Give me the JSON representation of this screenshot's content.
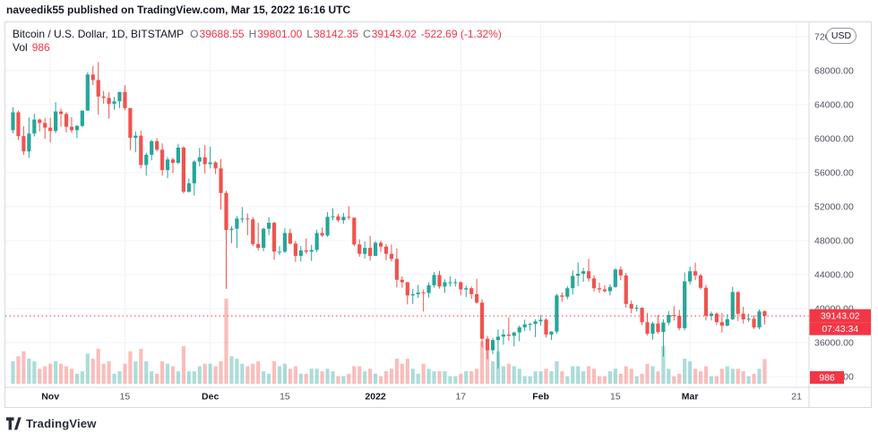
{
  "attribution": "naveedik55 published on TradingView.com, Mar 15, 2022 16:16 UTC",
  "header": {
    "symbol": "Bitcoin / U.S. Dollar, 1D, BITSTAMP",
    "ohlc": [
      {
        "label": "O",
        "value": "39688.55"
      },
      {
        "label": "H",
        "value": "39801.00"
      },
      {
        "label": "L",
        "value": "38142.35"
      },
      {
        "label": "C",
        "value": "39143.02"
      }
    ],
    "change": "-522.69 (-1.32%)",
    "vol_label": "Vol",
    "vol_value": "986"
  },
  "axis": {
    "currency_button": "USD",
    "price_ticks": [
      72000,
      68000,
      64000,
      60000,
      56000,
      52000,
      48000,
      44000,
      40000,
      36000,
      32000
    ],
    "time_ticks": [
      {
        "i": 7,
        "t": "Nov",
        "major": true
      },
      {
        "i": 21,
        "t": "15"
      },
      {
        "i": 37,
        "t": "Dec",
        "major": true
      },
      {
        "i": 51,
        "t": "15"
      },
      {
        "i": 68,
        "t": "2022",
        "major": true
      },
      {
        "i": 84,
        "t": "17"
      },
      {
        "i": 99,
        "t": "Feb",
        "major": true
      },
      {
        "i": 113,
        "t": "15"
      },
      {
        "i": 127,
        "t": "Mar",
        "major": true
      },
      {
        "i": 147,
        "t": "21"
      }
    ],
    "price_badge": "39143.02",
    "countdown_badge": "07:43:34",
    "volume_badge": "986"
  },
  "footer": {
    "logo_text": "TradingView"
  },
  "colors": {
    "up": "#26a69a",
    "down": "#ef5350",
    "accent_red": "#f23645",
    "grid": "#f0f3fa",
    "axis_text": "#50535e",
    "border": "#d7dade"
  },
  "chart_data": {
    "type": "candlestick+volume",
    "title": "Bitcoin / U.S. Dollar",
    "interval": "1D",
    "exchange": "BITSTAMP",
    "start_date": "2021-10-25",
    "end_date": "2022-03-15",
    "y_axis": {
      "min_label": 32000,
      "max_label": 72000,
      "step": 4000,
      "unit": "USD"
    },
    "last": {
      "open": 39688.55,
      "high": 39801.0,
      "low": 38142.35,
      "close": 39143.02,
      "change": -522.69,
      "change_pct": -1.32,
      "volume": 986
    },
    "candle_format": [
      "open",
      "high",
      "low",
      "close",
      "volume"
    ],
    "candles": [
      [
        61000,
        63700,
        60650,
        63100,
        900
      ],
      [
        63100,
        63300,
        59850,
        60300,
        1100
      ],
      [
        60300,
        61450,
        58100,
        58500,
        1300
      ],
      [
        58500,
        62500,
        57750,
        60600,
        1000
      ],
      [
        60600,
        62950,
        60250,
        62250,
        900
      ],
      [
        62250,
        62350,
        60850,
        61850,
        600
      ],
      [
        61850,
        62400,
        60000,
        61300,
        700
      ],
      [
        61300,
        62450,
        59550,
        60900,
        800
      ],
      [
        60900,
        64300,
        60650,
        63200,
        900
      ],
      [
        63200,
        63550,
        61400,
        62900,
        800
      ],
      [
        62900,
        63100,
        60750,
        61400,
        700
      ],
      [
        61400,
        62550,
        60700,
        61000,
        600
      ],
      [
        61000,
        61600,
        60050,
        61500,
        400
      ],
      [
        61500,
        63300,
        61350,
        63300,
        500
      ],
      [
        63300,
        67800,
        63300,
        67550,
        1200
      ],
      [
        67550,
        68550,
        66300,
        66900,
        1000
      ],
      [
        66900,
        69000,
        62850,
        64950,
        1400
      ],
      [
        64950,
        65600,
        64100,
        64800,
        800
      ],
      [
        64800,
        65450,
        62350,
        64100,
        900
      ],
      [
        64100,
        64900,
        63400,
        64400,
        400
      ],
      [
        64400,
        65500,
        63600,
        65500,
        500
      ],
      [
        65500,
        66300,
        63350,
        63600,
        800
      ],
      [
        63600,
        63600,
        58650,
        60100,
        1300
      ],
      [
        60100,
        60850,
        58400,
        60350,
        900
      ],
      [
        60350,
        60950,
        56500,
        56900,
        1400
      ],
      [
        56900,
        58350,
        55650,
        58100,
        900
      ],
      [
        58100,
        59850,
        57450,
        59700,
        500
      ],
      [
        59700,
        60050,
        58500,
        58700,
        400
      ],
      [
        58700,
        59450,
        55650,
        56300,
        900
      ],
      [
        56300,
        57850,
        55350,
        57550,
        800
      ],
      [
        57550,
        57750,
        55950,
        57150,
        700
      ],
      [
        57150,
        59400,
        57000,
        58950,
        500
      ],
      [
        58950,
        59100,
        53550,
        53750,
        1500
      ],
      [
        53750,
        55300,
        53650,
        54750,
        500
      ],
      [
        54750,
        57450,
        53300,
        57300,
        500
      ],
      [
        57300,
        58900,
        56750,
        57800,
        700
      ],
      [
        57800,
        59250,
        55900,
        57000,
        800
      ],
      [
        57000,
        59050,
        56500,
        57200,
        800
      ],
      [
        57200,
        57350,
        55850,
        56500,
        700
      ],
      [
        56500,
        57600,
        51650,
        53600,
        900
      ],
      [
        53600,
        53850,
        42330,
        49250,
        3400
      ],
      [
        49250,
        49700,
        47700,
        49400,
        1100
      ],
      [
        49400,
        50900,
        47150,
        50600,
        1000
      ],
      [
        50600,
        51950,
        50100,
        50600,
        800
      ],
      [
        50600,
        51200,
        48650,
        50500,
        700
      ],
      [
        50500,
        50800,
        47350,
        47600,
        800
      ],
      [
        47600,
        50100,
        46850,
        47150,
        900
      ],
      [
        47150,
        49500,
        46750,
        49400,
        500
      ],
      [
        49400,
        50750,
        48650,
        50100,
        400
      ],
      [
        50100,
        50200,
        45750,
        46700,
        900
      ],
      [
        46700,
        47350,
        46300,
        46700,
        700
      ],
      [
        46700,
        49450,
        46550,
        48900,
        800
      ],
      [
        48900,
        49400,
        47550,
        47650,
        600
      ],
      [
        47650,
        47950,
        45500,
        46200,
        700
      ],
      [
        46200,
        47350,
        45550,
        46850,
        400
      ],
      [
        46850,
        48250,
        46450,
        46700,
        400
      ],
      [
        46700,
        47500,
        45600,
        46900,
        600
      ],
      [
        46900,
        49300,
        46650,
        48900,
        600
      ],
      [
        48900,
        49550,
        48450,
        48600,
        500
      ],
      [
        48600,
        51350,
        48450,
        50800,
        600
      ],
      [
        50800,
        51800,
        50400,
        50850,
        500
      ],
      [
        50850,
        51150,
        50200,
        50400,
        300
      ],
      [
        50400,
        51250,
        50000,
        50800,
        300
      ],
      [
        50800,
        52050,
        50450,
        50700,
        400
      ],
      [
        50700,
        50700,
        47350,
        47550,
        700
      ],
      [
        47550,
        48150,
        46100,
        46450,
        700
      ],
      [
        46450,
        47900,
        45900,
        47150,
        500
      ],
      [
        47150,
        48550,
        45650,
        46200,
        600
      ],
      [
        46200,
        47950,
        46200,
        47750,
        400
      ],
      [
        47750,
        47990,
        46650,
        47300,
        300
      ],
      [
        47300,
        47600,
        45700,
        46450,
        500
      ],
      [
        46450,
        47550,
        45550,
        45850,
        600
      ],
      [
        45850,
        47100,
        42500,
        43400,
        1000
      ],
      [
        43400,
        43800,
        42450,
        43100,
        800
      ],
      [
        43100,
        43150,
        40500,
        41550,
        1000
      ],
      [
        41550,
        42300,
        40550,
        41700,
        600
      ],
      [
        41700,
        42800,
        41250,
        41900,
        400
      ],
      [
        41900,
        42250,
        39650,
        41840,
        800
      ],
      [
        41840,
        43100,
        41300,
        42750,
        600
      ],
      [
        42750,
        44300,
        42450,
        43950,
        500
      ],
      [
        43950,
        44450,
        42350,
        42600,
        500
      ],
      [
        42600,
        43450,
        41850,
        43100,
        500
      ],
      [
        43100,
        43800,
        42600,
        43100,
        300
      ],
      [
        43100,
        43500,
        42600,
        43100,
        300
      ],
      [
        43100,
        43200,
        41550,
        42250,
        400
      ],
      [
        42250,
        42700,
        41350,
        42400,
        500
      ],
      [
        42400,
        42600,
        41150,
        41700,
        500
      ],
      [
        41700,
        43500,
        40600,
        40700,
        600
      ],
      [
        40700,
        41100,
        35450,
        36450,
        1700
      ],
      [
        36450,
        36800,
        34050,
        35100,
        1800
      ],
      [
        35100,
        36550,
        34650,
        36300,
        900
      ],
      [
        36300,
        37550,
        32950,
        36700,
        1300
      ],
      [
        36700,
        37600,
        35750,
        36950,
        700
      ],
      [
        36950,
        38950,
        36250,
        36800,
        800
      ],
      [
        36800,
        37250,
        35550,
        37200,
        700
      ],
      [
        37200,
        38000,
        36150,
        37800,
        600
      ],
      [
        37800,
        38700,
        37350,
        38150,
        300
      ],
      [
        38150,
        38350,
        37400,
        38200,
        300
      ],
      [
        38200,
        38750,
        36650,
        38500,
        500
      ],
      [
        38500,
        39250,
        38000,
        38700,
        500
      ],
      [
        38700,
        38850,
        36600,
        36950,
        600
      ],
      [
        36950,
        37350,
        36300,
        37300,
        500
      ],
      [
        37300,
        41750,
        37050,
        41550,
        900
      ],
      [
        41550,
        41900,
        40800,
        41400,
        500
      ],
      [
        41400,
        42650,
        41100,
        42400,
        300
      ],
      [
        42400,
        44500,
        41650,
        43850,
        700
      ],
      [
        43850,
        45450,
        42650,
        44100,
        700
      ],
      [
        44100,
        44800,
        43150,
        44400,
        500
      ],
      [
        44400,
        45850,
        43200,
        43550,
        700
      ],
      [
        43550,
        43900,
        42000,
        42400,
        600
      ],
      [
        42400,
        43050,
        41850,
        42250,
        300
      ],
      [
        42250,
        42750,
        41900,
        42050,
        300
      ],
      [
        42050,
        42850,
        41550,
        42550,
        500
      ],
      [
        42550,
        44750,
        42450,
        44600,
        600
      ],
      [
        44600,
        44950,
        43350,
        43900,
        400
      ],
      [
        43900,
        44200,
        40100,
        40550,
        700
      ],
      [
        40550,
        40950,
        39450,
        40000,
        600
      ],
      [
        40000,
        40450,
        39650,
        40100,
        300
      ],
      [
        40100,
        40150,
        38050,
        38400,
        400
      ],
      [
        38400,
        39500,
        36850,
        37050,
        800
      ],
      [
        37050,
        38450,
        36350,
        38250,
        700
      ],
      [
        38250,
        39250,
        37050,
        37250,
        500
      ],
      [
        37250,
        38750,
        34350,
        38350,
        1500
      ],
      [
        38350,
        39700,
        38050,
        39250,
        600
      ],
      [
        39250,
        40300,
        38600,
        39150,
        300
      ],
      [
        39150,
        39850,
        37450,
        37700,
        400
      ],
      [
        37700,
        44250,
        37450,
        43200,
        1000
      ],
      [
        43200,
        44950,
        42850,
        44400,
        900
      ],
      [
        44400,
        45400,
        43350,
        43900,
        600
      ],
      [
        43900,
        44100,
        42250,
        42450,
        500
      ],
      [
        42450,
        42800,
        38600,
        39150,
        700
      ],
      [
        39150,
        39650,
        38600,
        39400,
        300
      ],
      [
        39400,
        39550,
        38100,
        38400,
        300
      ],
      [
        38400,
        39500,
        37200,
        38000,
        600
      ],
      [
        38000,
        39350,
        37900,
        38750,
        700
      ],
      [
        38750,
        42550,
        38650,
        41950,
        600
      ],
      [
        41950,
        42000,
        38550,
        39400,
        600
      ],
      [
        39400,
        40200,
        38250,
        38730,
        500
      ],
      [
        38730,
        39400,
        38450,
        38800,
        300
      ],
      [
        38800,
        39250,
        37600,
        37790,
        400
      ],
      [
        37790,
        39900,
        37580,
        39670,
        600
      ],
      [
        39688.55,
        39801,
        38142.35,
        39143.02,
        986
      ]
    ]
  }
}
